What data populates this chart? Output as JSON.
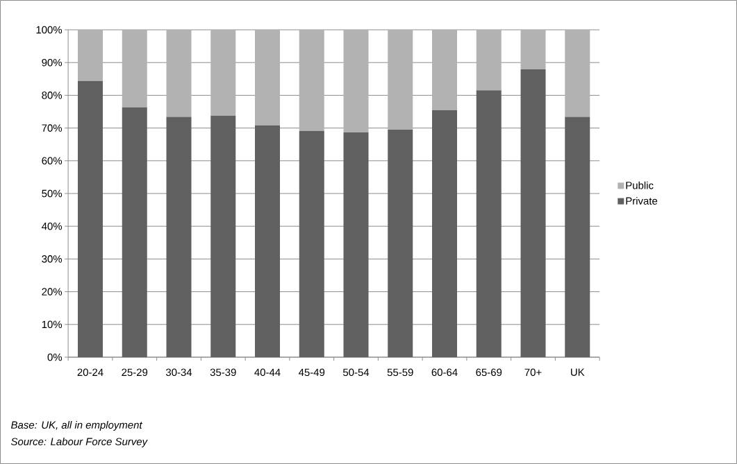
{
  "chart_data": {
    "type": "bar",
    "stacked": true,
    "categories": [
      "20-24",
      "25-29",
      "30-34",
      "35-39",
      "40-44",
      "45-49",
      "50-54",
      "55-59",
      "60-64",
      "65-69",
      "70+",
      "UK"
    ],
    "series": [
      {
        "name": "Private",
        "color": "#606060",
        "values": [
          84.4,
          76.3,
          73.4,
          73.8,
          70.8,
          69.1,
          68.7,
          69.5,
          75.5,
          81.5,
          87.9,
          73.4
        ]
      },
      {
        "name": "Public",
        "color": "#b2b2b2",
        "values": [
          15.6,
          23.7,
          26.6,
          26.2,
          29.2,
          30.9,
          31.3,
          30.5,
          24.5,
          18.5,
          12.1,
          26.6
        ]
      }
    ],
    "ylim": [
      0,
      100
    ],
    "yticks": [
      {
        "value": 0,
        "label": "0%"
      },
      {
        "value": 10,
        "label": "10%"
      },
      {
        "value": 20,
        "label": "20%"
      },
      {
        "value": 30,
        "label": "30%"
      },
      {
        "value": 40,
        "label": "40%"
      },
      {
        "value": 50,
        "label": "50%"
      },
      {
        "value": 60,
        "label": "60%"
      },
      {
        "value": 70,
        "label": "70%"
      },
      {
        "value": 80,
        "label": "80%"
      },
      {
        "value": 90,
        "label": "90%"
      },
      {
        "value": 100,
        "label": "100%"
      }
    ],
    "grid": "y",
    "legend": "right",
    "annotations": [
      "Base: UK, all in employment",
      "Source: Labour Force Survey"
    ]
  }
}
